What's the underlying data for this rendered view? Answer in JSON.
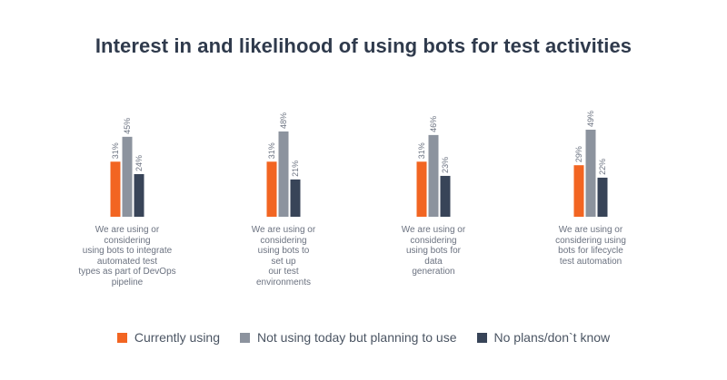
{
  "chart_data": {
    "type": "bar",
    "title": "Interest in and likelihood of using bots for test activities",
    "categories": [
      "We are using or\nconsidering\nusing bots to integrate\nautomated test\ntypes as part of DevOps\npipeline",
      "We are using or\nconsidering\nusing bots to\nset up\nour test\nenvironments",
      "We are using or\nconsidering\nusing bots for\ndata\ngeneration",
      "We are using or\nconsidering using\nbots for lifecycle\ntest automation"
    ],
    "series": [
      {
        "name": "Currently using",
        "values": [
          31,
          31,
          31,
          29
        ],
        "labels": [
          "31%",
          "31%",
          "31%",
          "29%"
        ],
        "color": "#f26522"
      },
      {
        "name": "Not using today but planning to use",
        "values": [
          45,
          48,
          46,
          49
        ],
        "labels": [
          "45%",
          "48%",
          "46%",
          "49%"
        ],
        "color": "#8c939e"
      },
      {
        "name": "No plans/don`t know",
        "values": [
          24,
          21,
          23,
          22
        ],
        "labels": [
          "24%",
          "21%",
          "23%",
          "22%"
        ],
        "color": "#384458"
      }
    ],
    "ylim": [
      0,
      49
    ],
    "grid": false,
    "legend_position": "bottom"
  }
}
